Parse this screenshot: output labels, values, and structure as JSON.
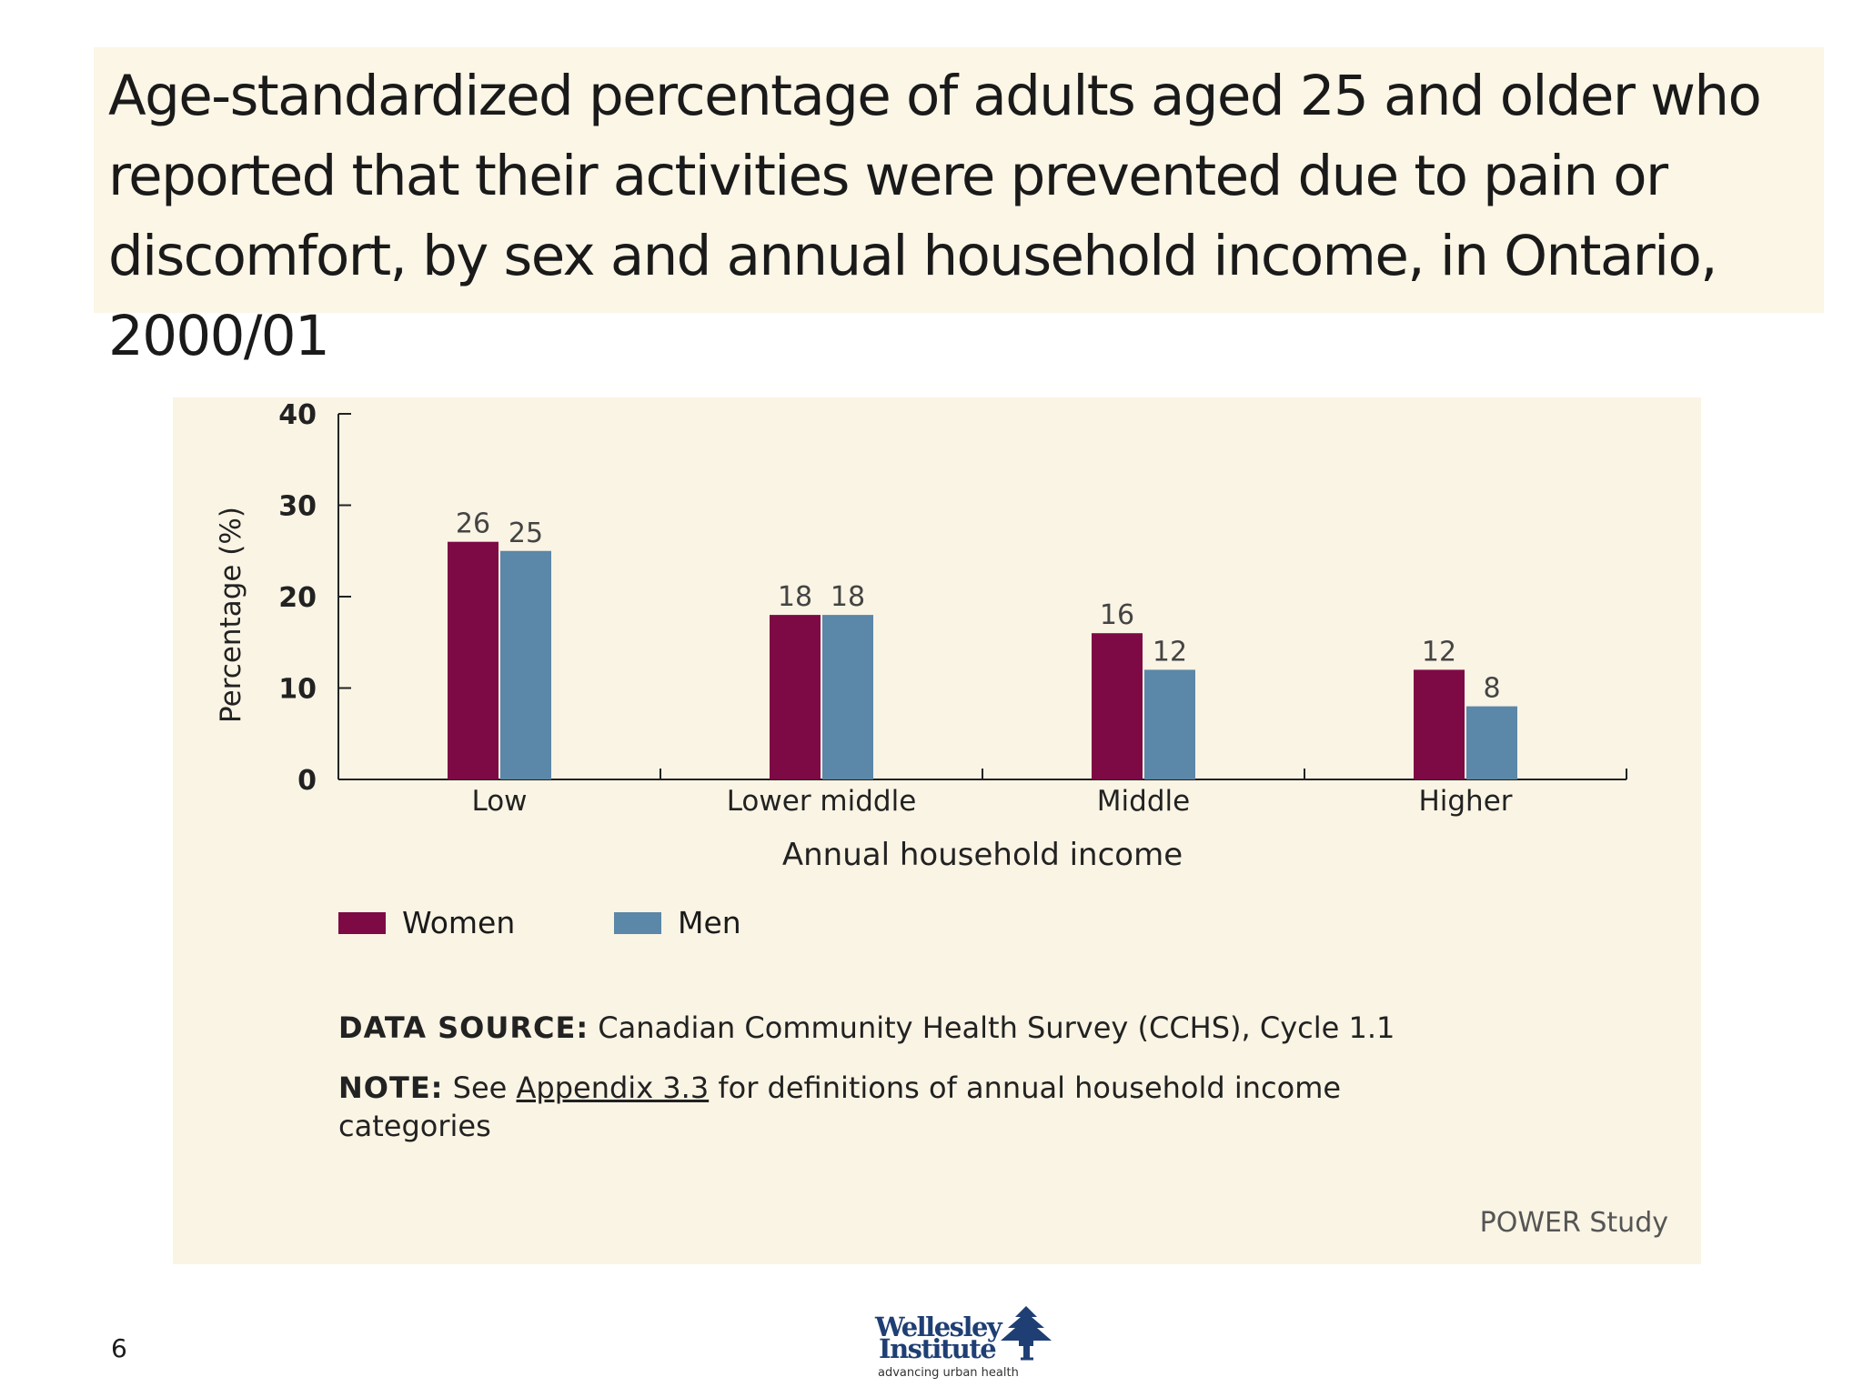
{
  "title": "Age-standardized percentage of adults aged 25 and older who reported that their activities were prevented due to pain or discomfort, by sex and annual household income, in Ontario, 2000/01",
  "title_lines": [
    "Age-standardized percentage of adults aged 25 and older who",
    "reported that their activities were prevented due to pain or",
    "discomfort, by sex and annual household income, in Ontario, 2000/01"
  ],
  "chart_data": {
    "type": "bar",
    "title": "Age-standardized percentage of adults aged 25 and older who reported that their activities were prevented due to pain or discomfort, by sex and annual household income, in Ontario, 2000/01",
    "categories": [
      "Low",
      "Lower middle",
      "Middle",
      "Higher"
    ],
    "series": [
      {
        "name": "Women",
        "values": [
          26,
          18,
          16,
          12
        ],
        "color": "#7d0a45"
      },
      {
        "name": "Men",
        "values": [
          25,
          18,
          12,
          8
        ],
        "color": "#5b87a8"
      }
    ],
    "xlabel": "Annual household income",
    "ylabel": "Percentage (%)",
    "ylim": [
      0,
      40
    ],
    "yticks": [
      0,
      10,
      20,
      30,
      40
    ],
    "grid": false,
    "legend": "bottom-left"
  },
  "data_source_label": "DATA SOURCE:",
  "data_source_text": " Canadian Community Health Survey (CCHS), Cycle 1.1",
  "note_label": "NOTE:",
  "note_prefix": " See ",
  "note_link": "Appendix 3.3",
  "note_suffix": " for definitions of annual household income categories",
  "credit": "POWER Study",
  "page_number": "6",
  "logo": {
    "line1": "Wellesley",
    "line2": "Institute",
    "tagline": "advancing urban health"
  },
  "colors": {
    "women": "#7d0a45",
    "men": "#5b87a8",
    "panel_bg": "#faf4e4",
    "title_bg": "#fbf6e6",
    "logo_blue": "#1f3f74"
  }
}
